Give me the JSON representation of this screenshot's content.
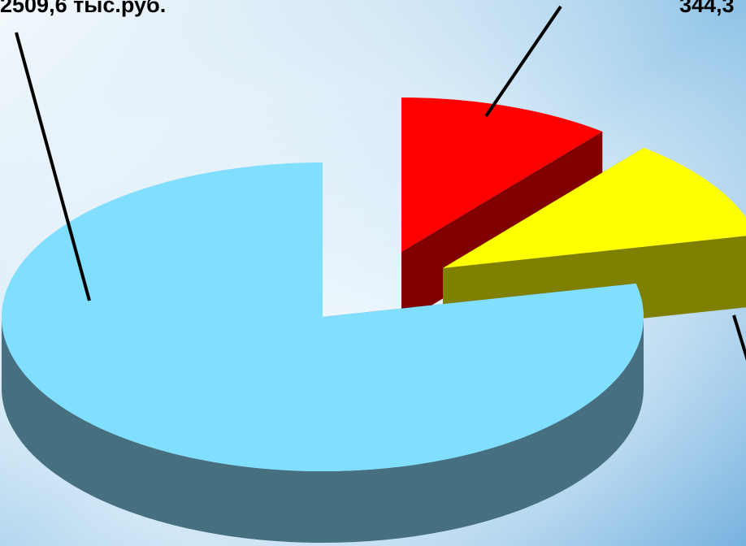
{
  "chart_data": {
    "type": "pie",
    "style": "3d-exploded",
    "title": "",
    "series": [
      {
        "values": [
          2509.6,
          344.3,
          344.3
        ],
        "colors": [
          "#80deff",
          "#ff0000",
          "#ffff00"
        ],
        "side_colors": [
          "#467080",
          "#800000",
          "#808000"
        ]
      }
    ],
    "data_labels": [
      {
        "slice": 0,
        "text": "2509,6 тыс.руб."
      },
      {
        "slice": 2,
        "text": "344,3"
      }
    ],
    "legend": "none"
  }
}
